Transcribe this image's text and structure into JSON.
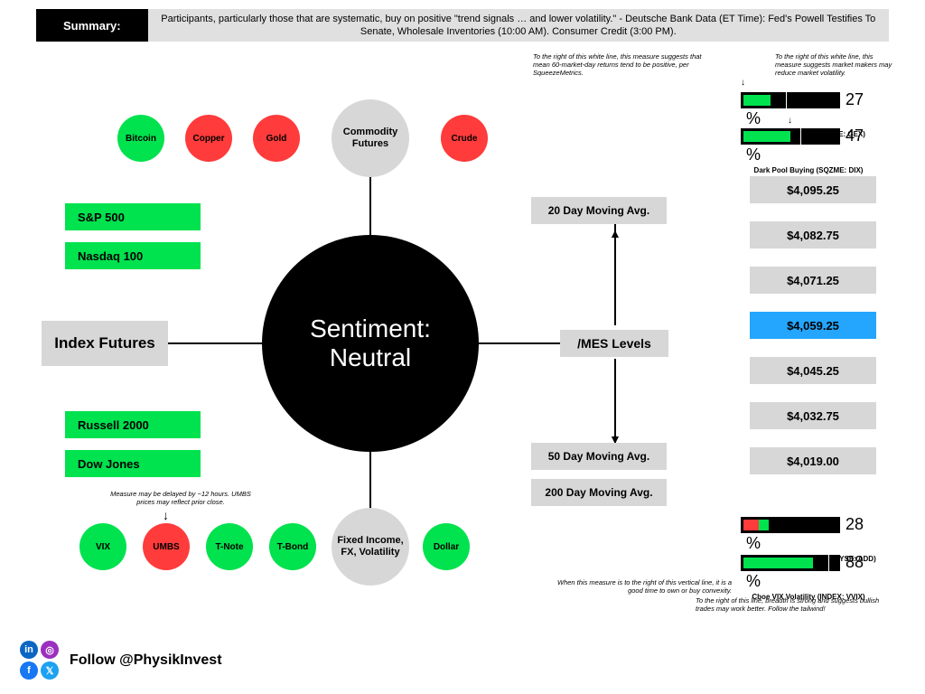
{
  "colors": {
    "green": "#00e24e",
    "red": "#ff3b3b",
    "gray": "#d7d7d7",
    "black": "#000000",
    "blue": "#24a6ff",
    "linkedin": "#0a66c2",
    "instagram": "#9b2fbf",
    "facebook": "#1877f2",
    "twitter": "#1da1f2"
  },
  "summary": {
    "label": "Summary:",
    "text": "Participants, particularly those that are systematic, buy on positive \"trend signals … and lower volatility.\" - Deutsche Bank Data (ET Time): Fed's Powell Testifies To Senate, Wholesale Inventories (10:00 AM). Consumer Credit (3:00 PM)."
  },
  "center": {
    "line1": "Sentiment:",
    "line2": "Neutral"
  },
  "categories": {
    "top": "Commodity Futures",
    "left": "Index Futures",
    "right": "/MES Levels",
    "bottom": "Fixed Income, FX, Volatility"
  },
  "commodities": [
    {
      "label": "Bitcoin",
      "color": "green"
    },
    {
      "label": "Copper",
      "color": "red"
    },
    {
      "label": "Gold",
      "color": "red"
    },
    {
      "label": "Crude",
      "color": "red"
    }
  ],
  "indices": [
    {
      "label": "S&P 500",
      "color": "green"
    },
    {
      "label": "Nasdaq 100",
      "color": "green"
    },
    {
      "label": "Russell 2000",
      "color": "green"
    },
    {
      "label": "Dow Jones",
      "color": "green"
    }
  ],
  "fixed_income": [
    {
      "label": "VIX",
      "color": "green"
    },
    {
      "label": "UMBS",
      "color": "red"
    },
    {
      "label": "T-Note",
      "color": "green"
    },
    {
      "label": "T-Bond",
      "color": "green"
    },
    {
      "label": "Dollar",
      "color": "green"
    }
  ],
  "umbs_note": "Measure may be delayed by ~12 hours. UMBS prices may reflect prior close.",
  "moving_avg": {
    "d20": "20 Day Moving Avg.",
    "d50": "50 Day Moving Avg.",
    "d200": "200 Day Moving Avg."
  },
  "levels": [
    {
      "value": "$4,095.25",
      "hl": false
    },
    {
      "value": "$4,082.75",
      "hl": false
    },
    {
      "value": "$4,071.25",
      "hl": false
    },
    {
      "value": "$4,059.25",
      "hl": true
    },
    {
      "value": "$4,045.25",
      "hl": false
    },
    {
      "value": "$4,032.75",
      "hl": false
    },
    {
      "value": "$4,019.00",
      "hl": false
    }
  ],
  "gauges": {
    "gex": {
      "pct": 27,
      "label": "Gamma Exposure (SQZME: GEX)",
      "note": "To the right of this white line, this measure suggests that mean 60-market-day returns tend to be positive, per SqueezeMetrics."
    },
    "dix": {
      "pct": 47,
      "label": "Dark Pool Buying (SQZME: DIX)",
      "note": "To the right of this white line, this measure suggests market makers may reduce market volatility."
    },
    "add": {
      "pct": 28,
      "label": "Breadth ADV Minus DECL (NYSE: ADD)",
      "note": "To the right of this line, breadth is strong and suggests bullish trades may work better. Follow the tailwind!"
    },
    "vvix": {
      "pct": 88,
      "label": "Cboe VIX Volatility (INDEX: VVIX)",
      "note": "When this measure is to the right of this vertical line, it is a good time to own or buy convexity."
    }
  },
  "footer": {
    "follow": "Follow @PhysikInvest"
  }
}
